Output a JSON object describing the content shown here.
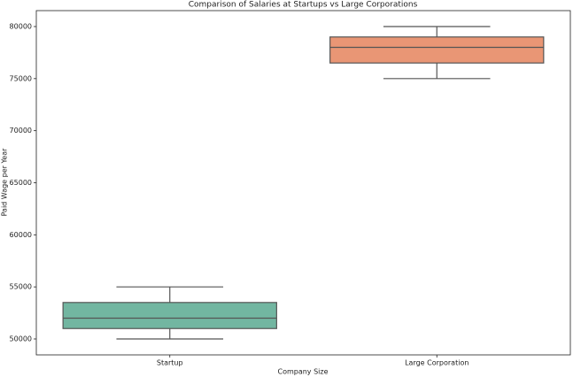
{
  "chart_data": {
    "type": "box",
    "title": "Comparison of Salaries at Startups vs Large Corporations",
    "x_label": "Company Size",
    "y_label": "Paid Wage per Year",
    "categories": [
      "Startup",
      "Large Corporation"
    ],
    "boxes": [
      {
        "min": 50000,
        "q1": 51000,
        "median": 52000,
        "q3": 53500,
        "max": 55000,
        "color": "#72b6a1"
      },
      {
        "min": 75000,
        "q1": 76500,
        "median": 78000,
        "q3": 79000,
        "max": 80000,
        "color": "#e99675"
      }
    ],
    "ylim": [
      48470,
      81530
    ],
    "yticks": [
      50000,
      55000,
      60000,
      65000,
      70000,
      75000,
      80000
    ]
  }
}
